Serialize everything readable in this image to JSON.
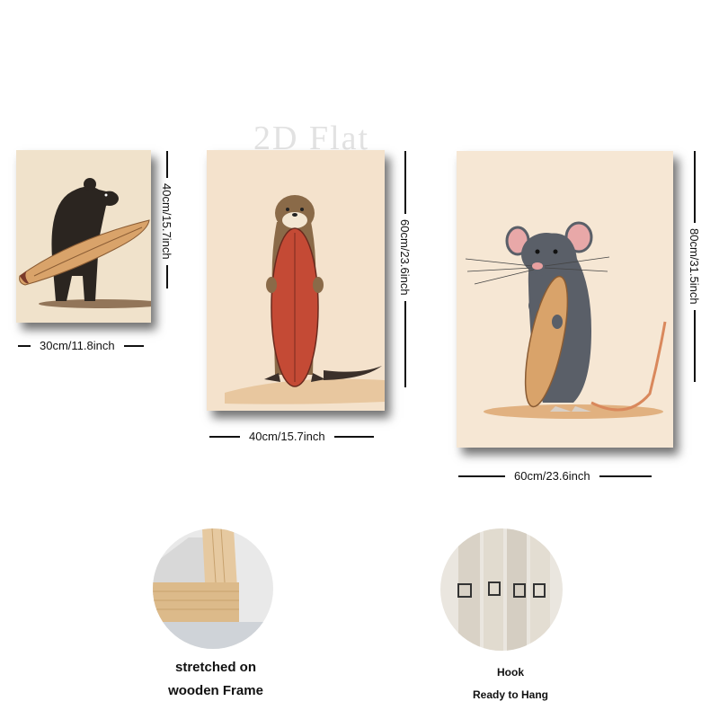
{
  "watermark": "2D Flat",
  "panels": [
    {
      "animal": "bear",
      "width_label": "30cm/11.8inch",
      "height_label": "40cm/15.7inch"
    },
    {
      "animal": "otter",
      "width_label": "40cm/15.7inch",
      "height_label": "60cm/23.6inch"
    },
    {
      "animal": "mouse",
      "width_label": "60cm/23.6inch",
      "height_label": "80cm/31.5inch"
    }
  ],
  "frame_detail": {
    "line1": "stretched on",
    "line2": "wooden Frame"
  },
  "hook_detail": {
    "line1": "Hook",
    "line2": "Ready to Hang"
  },
  "colors": {
    "canvas_bg": "#f5e6d3",
    "surfboard": "#d9a36a",
    "otter_board": "#c44a35",
    "bear": "#2b2520",
    "mouse": "#5a5f68"
  }
}
